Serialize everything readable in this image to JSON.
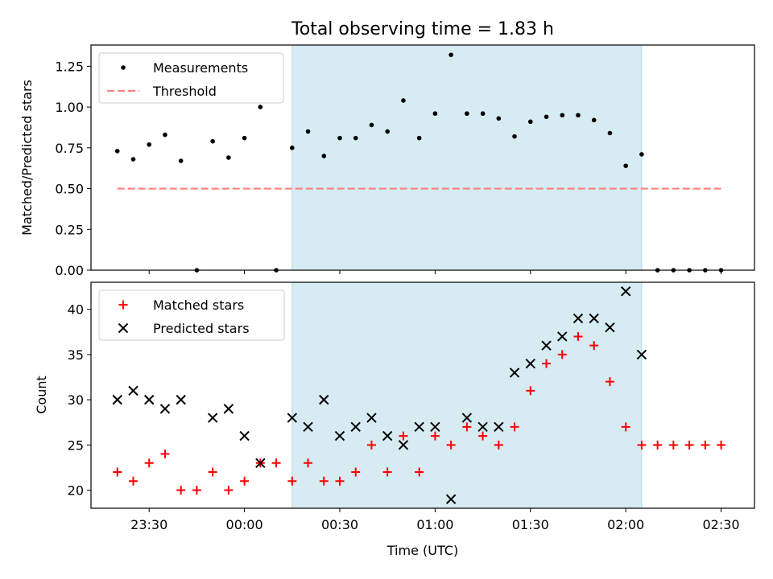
{
  "chart_data": {
    "title": "Total observing time = 1.83 h",
    "xlabel": "Time (UTC)",
    "x_ticks": [
      "23:30",
      "00:00",
      "00:30",
      "01:00",
      "01:30",
      "02:00",
      "02:30"
    ],
    "x_tick_values": [
      -30,
      0,
      30,
      60,
      90,
      120,
      150
    ],
    "x_unit": "minutes relative to 00:00 UTC",
    "xlim": [
      -48.3,
      160.5
    ],
    "shaded_span": {
      "start": 15,
      "end": 125,
      "color": "#add8e6"
    },
    "panels": [
      {
        "type": "scatter",
        "ylabel": "Matched/Predicted stars",
        "ylim": [
          0,
          1.38
        ],
        "y_ticks": [
          "0.00",
          "0.25",
          "0.50",
          "0.75",
          "1.00",
          "1.25"
        ],
        "y_tick_values": [
          0,
          0.25,
          0.5,
          0.75,
          1.0,
          1.25
        ],
        "legend_position": "upper-left",
        "series": [
          {
            "name": "Measurements",
            "marker": "dot",
            "color": "#000000",
            "x": [
              -40,
              -35,
              -30,
              -25,
              -20,
              -15,
              -10,
              -5,
              0,
              5,
              10,
              15,
              20,
              25,
              30,
              35,
              40,
              45,
              50,
              55,
              60,
              65,
              70,
              75,
              80,
              85,
              90,
              95,
              100,
              105,
              110,
              115,
              120,
              125,
              130,
              135,
              140,
              145,
              150
            ],
            "y": [
              0.73,
              0.68,
              0.77,
              0.83,
              0.67,
              0.0,
              0.79,
              0.69,
              0.81,
              1.0,
              0.0,
              0.75,
              0.85,
              0.7,
              0.81,
              0.81,
              0.89,
              0.85,
              1.04,
              0.81,
              0.96,
              1.32,
              0.96,
              0.96,
              0.93,
              0.82,
              0.91,
              0.94,
              0.95,
              0.95,
              0.92,
              0.84,
              0.64,
              0.71,
              0.0,
              0.0,
              0.0,
              0.0,
              0.0
            ]
          },
          {
            "name": "Threshold",
            "type": "line",
            "style": "dashed",
            "color": "#ff7f7f",
            "x": [
              -40,
              150
            ],
            "y": [
              0.5,
              0.5
            ]
          }
        ]
      },
      {
        "type": "scatter",
        "ylabel": "Count",
        "ylim": [
          18,
          43
        ],
        "y_ticks": [
          "20",
          "25",
          "30",
          "35",
          "40"
        ],
        "y_tick_values": [
          20,
          25,
          30,
          35,
          40
        ],
        "legend_position": "upper-left",
        "series": [
          {
            "name": "Matched stars",
            "marker": "plus",
            "color": "#ff0000",
            "x": [
              -40,
              -35,
              -30,
              -25,
              -20,
              -15,
              -10,
              -5,
              0,
              5,
              10,
              15,
              20,
              25,
              30,
              35,
              40,
              45,
              50,
              55,
              60,
              65,
              70,
              75,
              80,
              85,
              90,
              95,
              100,
              105,
              110,
              115,
              120,
              125,
              130,
              135,
              140,
              145,
              150
            ],
            "y": [
              22,
              21,
              23,
              24,
              20,
              20,
              22,
              20,
              21,
              23,
              23,
              21,
              23,
              21,
              21,
              22,
              25,
              22,
              26,
              22,
              26,
              25,
              27,
              26,
              25,
              27,
              31,
              34,
              35,
              37,
              36,
              32,
              27,
              25,
              25,
              25,
              25,
              25,
              25
            ]
          },
          {
            "name": "Predicted stars",
            "marker": "x",
            "color": "#000000",
            "x": [
              -40,
              -35,
              -30,
              -25,
              -20,
              -10,
              -5,
              0,
              5,
              15,
              20,
              25,
              30,
              35,
              40,
              45,
              50,
              55,
              60,
              65,
              70,
              75,
              80,
              85,
              90,
              95,
              100,
              105,
              110,
              115,
              120,
              125
            ],
            "y": [
              30,
              31,
              30,
              29,
              30,
              28,
              29,
              26,
              23,
              28,
              27,
              30,
              26,
              27,
              28,
              26,
              25,
              27,
              27,
              19,
              28,
              27,
              27,
              33,
              34,
              36,
              37,
              39,
              39,
              38,
              42,
              35
            ]
          }
        ]
      }
    ]
  }
}
